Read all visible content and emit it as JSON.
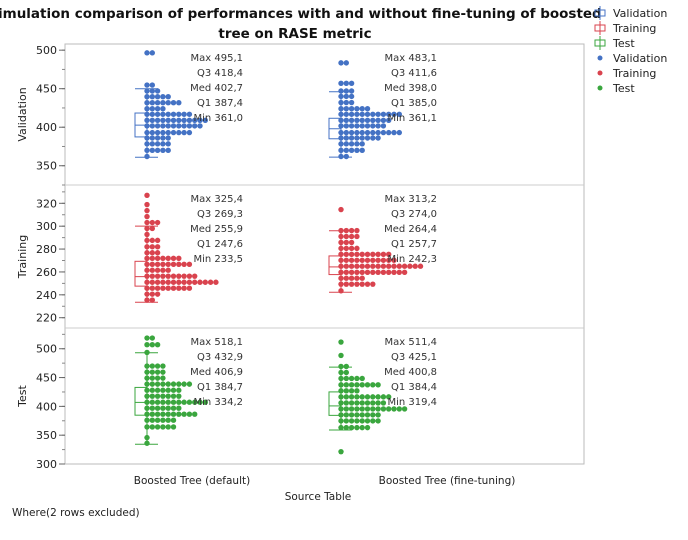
{
  "chart_data": {
    "type": "dot-histogram-boxplot",
    "title": "Simulation comparison of performances with and without fine-tuning of boosted tree on RASE metric",
    "xlabel": "Source Table",
    "categories": [
      "Boosted Tree (default)",
      "Boosted Tree (fine-tuning)"
    ],
    "footer": "Where(2 rows excluded)",
    "grid": false,
    "legend_placement": "right",
    "legend": [
      {
        "label": "Validation",
        "kind": "box",
        "color": "#4472C4"
      },
      {
        "label": "Training",
        "kind": "box",
        "color": "#D9434E"
      },
      {
        "label": "Test",
        "kind": "box",
        "color": "#3AA63E"
      },
      {
        "label": "Validation",
        "kind": "dot",
        "color": "#4472C4"
      },
      {
        "label": "Training",
        "kind": "dot",
        "color": "#D9434E"
      },
      {
        "label": "Test",
        "kind": "dot",
        "color": "#3AA63E"
      }
    ],
    "stat_labels": [
      "Max",
      "Q3",
      "Med",
      "Q1",
      "Min"
    ],
    "panels": [
      {
        "name": "Validation",
        "color": "#4472C4",
        "ylim": [
          325,
          508
        ],
        "yticks": [
          350,
          400,
          450,
          500
        ],
        "groups": [
          {
            "stats": {
              "Max": "495,1",
              "Q3": "418,4",
              "Med": "402,7",
              "Q1": "387,4",
              "Min": "361,0"
            },
            "box": {
              "q1": 387.4,
              "med": 402.7,
              "q3": 418.4,
              "whisker_low": 361.0,
              "whisker_high": 450
            },
            "dots": [
              [
                496.5,
                2
              ],
              [
                454.7,
                2
              ],
              [
                447,
                3
              ],
              [
                439.6,
                5
              ],
              [
                431.8,
                7
              ],
              [
                424,
                4
              ],
              [
                416.8,
                9
              ],
              [
                409,
                12
              ],
              [
                401.7,
                11
              ],
              [
                393,
                9
              ],
              [
                386,
                5
              ],
              [
                378.4,
                5
              ],
              [
                370,
                5
              ],
              [
                362,
                1
              ]
            ]
          },
          {
            "stats": {
              "Max": "483,1",
              "Q3": "411,6",
              "Med": "398,0",
              "Q1": "385,0",
              "Min": "361,1"
            },
            "box": {
              "q1": 385.0,
              "med": 398.0,
              "q3": 411.6,
              "whisker_low": 361.1,
              "whisker_high": 446
            },
            "dots": [
              [
                483.5,
                2
              ],
              [
                457,
                3
              ],
              [
                447,
                3
              ],
              [
                440,
                3
              ],
              [
                432,
                3
              ],
              [
                424,
                6
              ],
              [
                416.8,
                12
              ],
              [
                409,
                10
              ],
              [
                401.7,
                9
              ],
              [
                393,
                12
              ],
              [
                386,
                8
              ],
              [
                378.4,
                5
              ],
              [
                370,
                5
              ],
              [
                362,
                2
              ]
            ]
          }
        ]
      },
      {
        "name": "Training",
        "color": "#D9434E",
        "ylim": [
          211,
          336
        ],
        "yticks": [
          220,
          240,
          260,
          280,
          300,
          320
        ],
        "groups": [
          {
            "stats": {
              "Max": "325,4",
              "Q3": "269,3",
              "Med": "255,9",
              "Q1": "247,6",
              "Min": "233,5"
            },
            "box": {
              "q1": 247.6,
              "med": 255.9,
              "q3": 269.3,
              "whisker_low": 233.5,
              "whisker_high": 300
            },
            "dots": [
              [
                327,
                1
              ],
              [
                318.9,
                1
              ],
              [
                313.6,
                1
              ],
              [
                308.4,
                1
              ],
              [
                303.2,
                3
              ],
              [
                298,
                2
              ],
              [
                292.8,
                1
              ],
              [
                287.6,
                3
              ],
              [
                282,
                3
              ],
              [
                276.8,
                3
              ],
              [
                271.9,
                7
              ],
              [
                266.7,
                9
              ],
              [
                261.5,
                5
              ],
              [
                256.3,
                10
              ],
              [
                251,
                14
              ],
              [
                245.8,
                9
              ],
              [
                240.6,
                3
              ],
              [
                235.4,
                2
              ]
            ]
          },
          {
            "stats": {
              "Max": "313,2",
              "Q3": "274,0",
              "Med": "264,4",
              "Q1": "257,7",
              "Min": "242,3"
            },
            "box": {
              "q1": 257.7,
              "med": 264.4,
              "q3": 274.0,
              "whisker_low": 242.3,
              "whisker_high": 296
            },
            "dots": [
              [
                314.5,
                1
              ],
              [
                296.2,
                4
              ],
              [
                291,
                4
              ],
              [
                285.8,
                3
              ],
              [
                280.6,
                4
              ],
              [
                275.4,
                10
              ],
              [
                270.2,
                11
              ],
              [
                265,
                16
              ],
              [
                259.7,
                13
              ],
              [
                254.5,
                5
              ],
              [
                249.3,
                7
              ],
              [
                243.5,
                1
              ]
            ]
          }
        ]
      },
      {
        "name": "Test",
        "color": "#3AA63E",
        "ylim": [
          300,
          536
        ],
        "yticks": [
          300,
          350,
          400,
          450,
          500
        ],
        "groups": [
          {
            "stats": {
              "Max": "518,1",
              "Q3": "432,9",
              "Med": "406,9",
              "Q1": "384,7",
              "Min": "334,2"
            },
            "box": {
              "q1": 384.7,
              "med": 406.9,
              "q3": 432.9,
              "whisker_low": 334.2,
              "whisker_high": 493
            },
            "dots": [
              [
                518.6,
                2
              ],
              [
                507,
                3
              ],
              [
                493.6,
                1
              ],
              [
                469.9,
                4
              ],
              [
                459.4,
                4
              ],
              [
                449,
                4
              ],
              [
                438.6,
                9
              ],
              [
                428,
                7
              ],
              [
                417.7,
                7
              ],
              [
                407.2,
                12
              ],
              [
                396.8,
                7
              ],
              [
                386.4,
                10
              ],
              [
                376,
                6
              ],
              [
                364.3,
                6
              ],
              [
                345.8,
                1
              ],
              [
                336,
                1
              ]
            ]
          },
          {
            "stats": {
              "Max": "511,4",
              "Q3": "425,1",
              "Med": "400,8",
              "Q1": "384,4",
              "Min": "319,4"
            },
            "box": {
              "q1": 384.4,
              "med": 400.8,
              "q3": 425.1,
              "whisker_low": 359,
              "whisker_high": 468
            },
            "dots": [
              [
                511.6,
                1
              ],
              [
                488.4,
                1
              ],
              [
                469.3,
                2
              ],
              [
                458.8,
                2
              ],
              [
                448.4,
                5
              ],
              [
                437.4,
                8
              ],
              [
                427,
                4
              ],
              [
                416.5,
                10
              ],
              [
                406,
                9
              ],
              [
                395.6,
                13
              ],
              [
                385.2,
                8
              ],
              [
                374.8,
                8
              ],
              [
                363.1,
                6
              ],
              [
                321.4,
                1
              ]
            ]
          }
        ]
      }
    ]
  }
}
